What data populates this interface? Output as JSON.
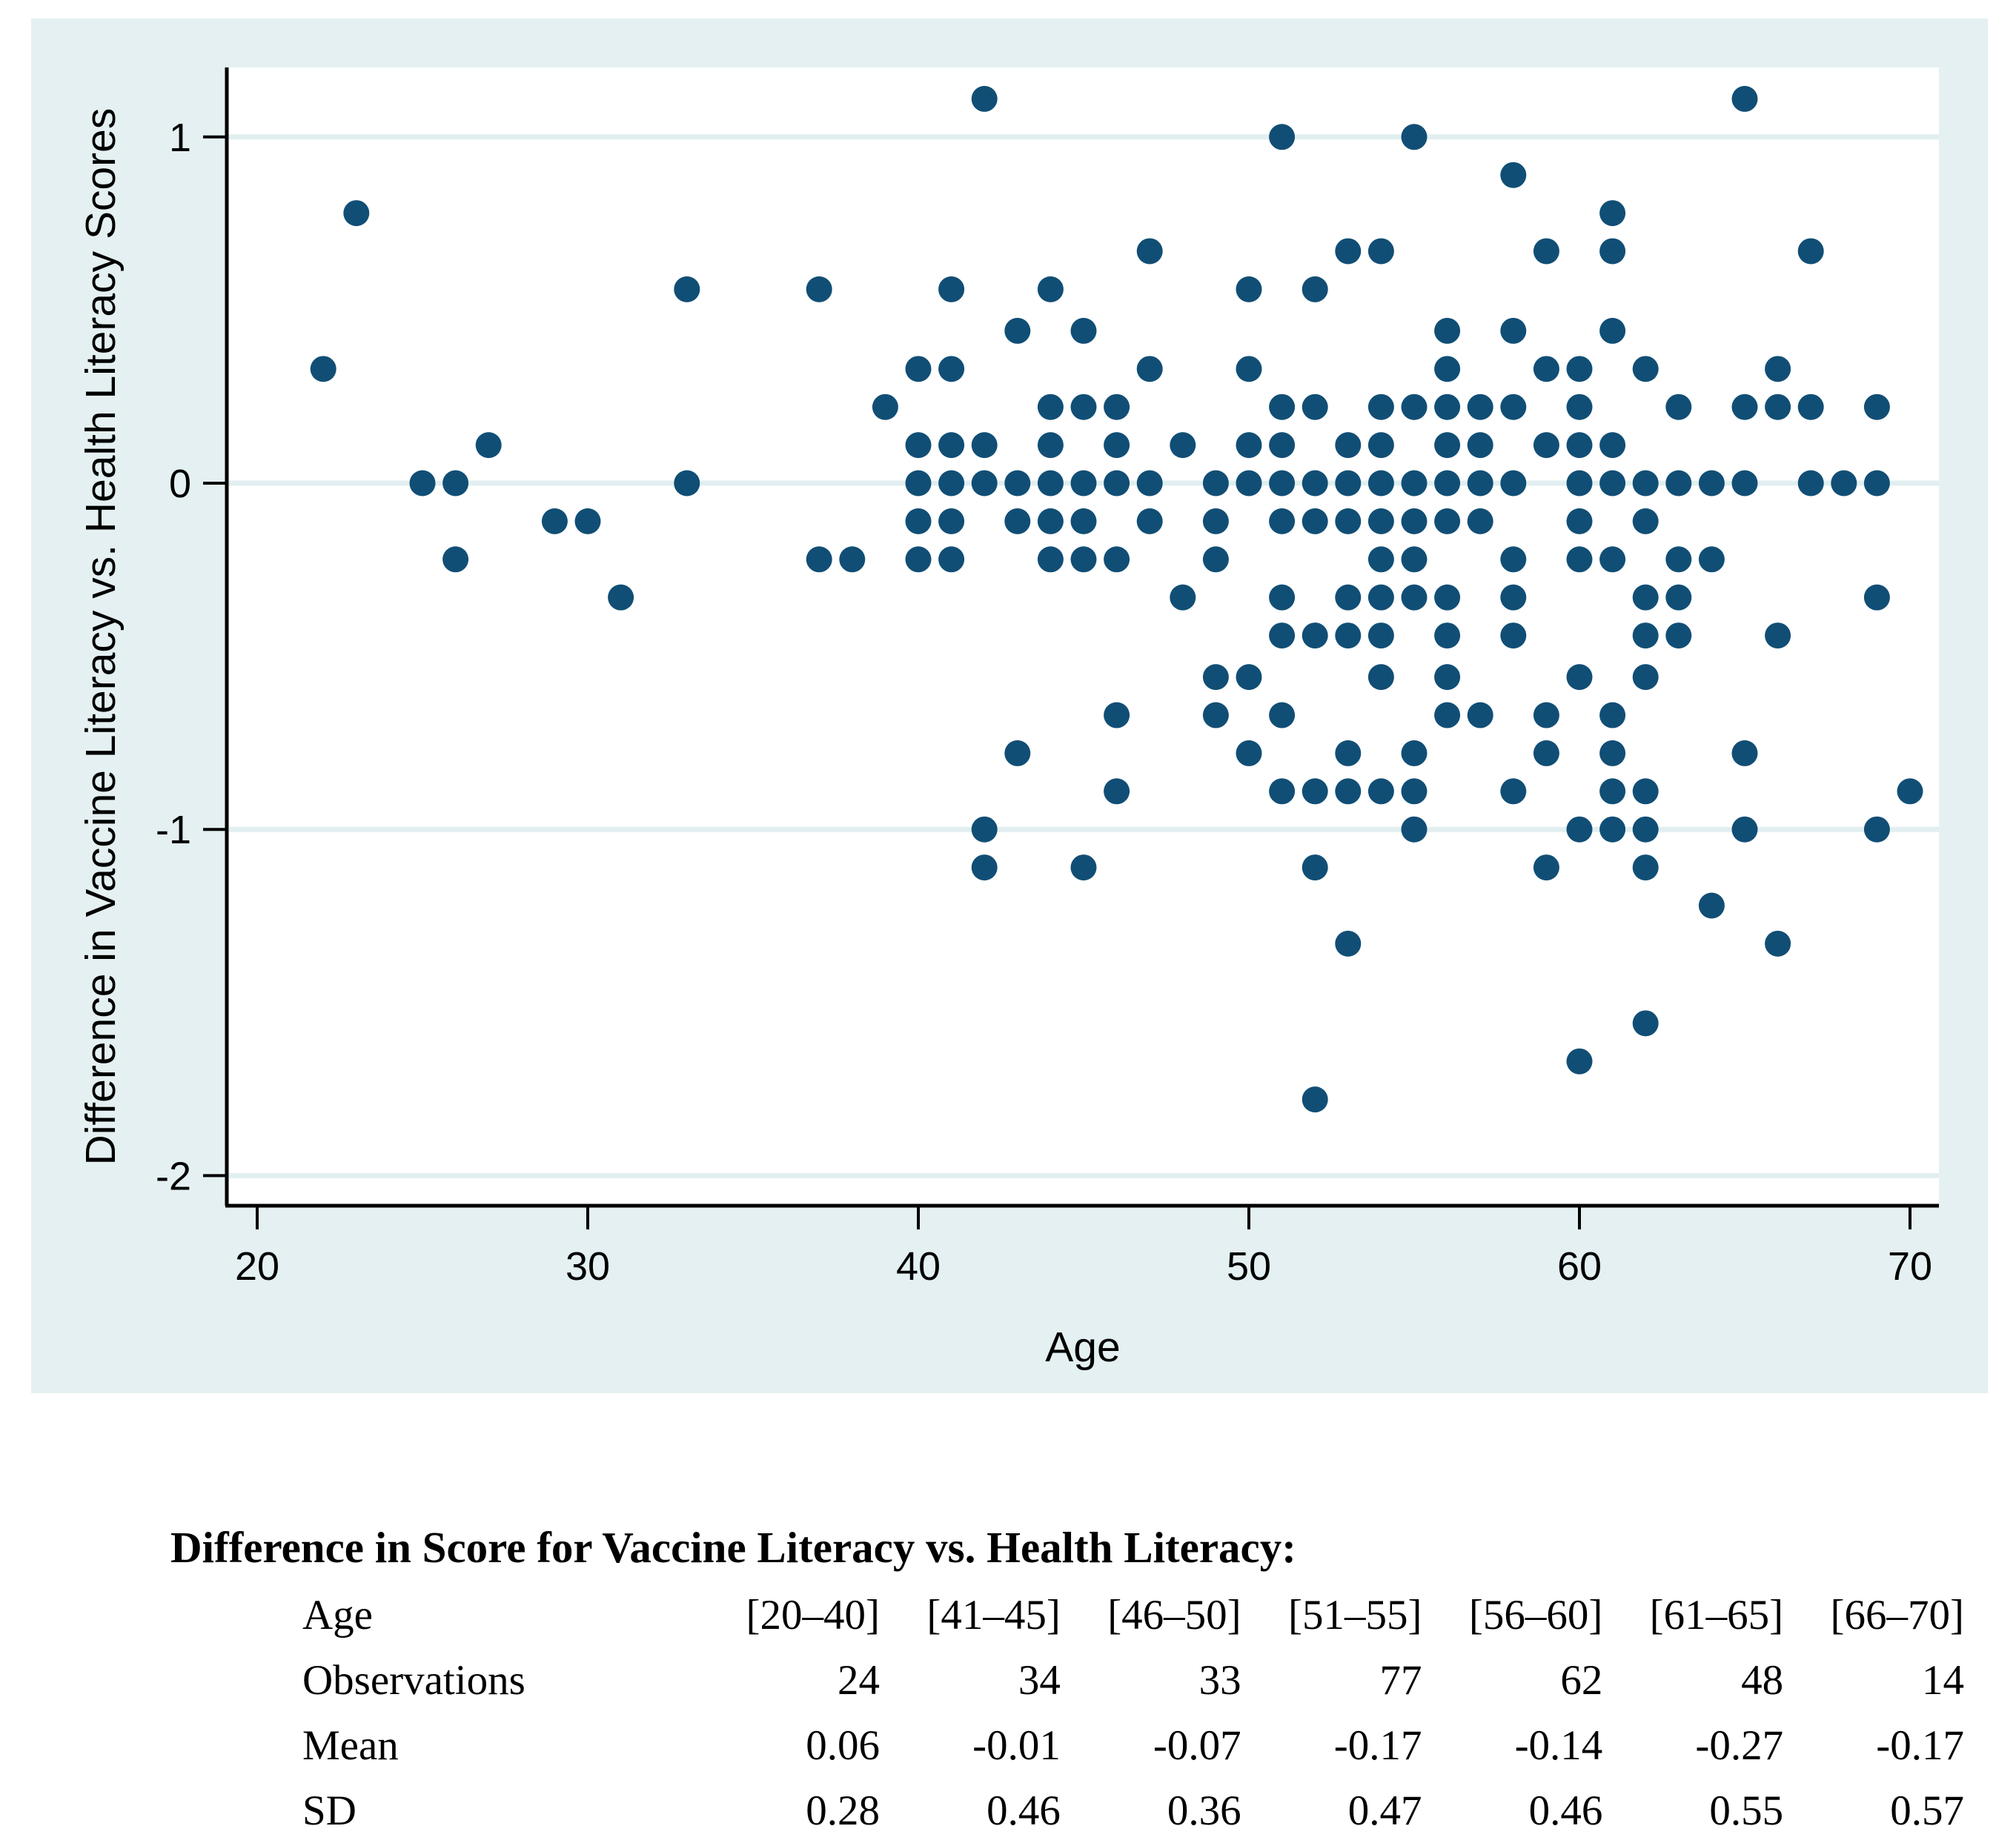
{
  "chart_data": {
    "type": "scatter",
    "title": "",
    "xlabel": "Age",
    "ylabel": "Difference in Vaccine Literacy vs. Health Literacy Scores",
    "x_ticks": [
      20,
      30,
      40,
      50,
      60,
      70
    ],
    "y_ticks": [
      1,
      0,
      -1,
      -2
    ],
    "xlim": [
      19.05,
      70.95
    ],
    "ylim": [
      -2.08,
      1.2
    ],
    "grid": "horizontal-only",
    "legend": "none",
    "marker_color": "#114E75",
    "panel_color": "#E4F0F1",
    "gridline_color": "#E2EFF0",
    "axis_color": "#000000",
    "points": [
      [
        22,
        0.33
      ],
      [
        23,
        0.78
      ],
      [
        25,
        0
      ],
      [
        26,
        0
      ],
      [
        26,
        -0.22
      ],
      [
        27,
        0.11
      ],
      [
        29,
        -0.11
      ],
      [
        30,
        -0.11
      ],
      [
        31,
        -0.33
      ],
      [
        33,
        0.56
      ],
      [
        33,
        0
      ],
      [
        37,
        0.56
      ],
      [
        37,
        -0.22
      ],
      [
        38,
        -0.22
      ],
      [
        39,
        0.22
      ],
      [
        40,
        0.33
      ],
      [
        40,
        0.11
      ],
      [
        40,
        0
      ],
      [
        40,
        -0.11
      ],
      [
        40,
        -0.22
      ],
      [
        41,
        0.56
      ],
      [
        41,
        0.33
      ],
      [
        41,
        0.11
      ],
      [
        41,
        0
      ],
      [
        41,
        -0.11
      ],
      [
        41,
        -0.22
      ],
      [
        42,
        1.11
      ],
      [
        42,
        0.11
      ],
      [
        42,
        0
      ],
      [
        42,
        -1.0
      ],
      [
        42,
        -1.11
      ],
      [
        43,
        0.44
      ],
      [
        43,
        0
      ],
      [
        43,
        -0.11
      ],
      [
        43,
        -0.78
      ],
      [
        44,
        0.56
      ],
      [
        44,
        0.22
      ],
      [
        44,
        0.11
      ],
      [
        44,
        0
      ],
      [
        44,
        -0.11
      ],
      [
        44,
        -0.22
      ],
      [
        45,
        0.44
      ],
      [
        45,
        0.22
      ],
      [
        45,
        0
      ],
      [
        45,
        -0.11
      ],
      [
        45,
        -0.22
      ],
      [
        45,
        -1.11
      ],
      [
        46,
        0.22
      ],
      [
        46,
        0.11
      ],
      [
        46,
        0
      ],
      [
        46,
        -0.22
      ],
      [
        46,
        -0.67
      ],
      [
        46,
        -0.89
      ],
      [
        47,
        0.67
      ],
      [
        47,
        0.33
      ],
      [
        47,
        0
      ],
      [
        47,
        -0.11
      ],
      [
        48,
        0.11
      ],
      [
        48,
        -0.33
      ],
      [
        49,
        0
      ],
      [
        49,
        -0.11
      ],
      [
        49,
        -0.22
      ],
      [
        49,
        -0.56
      ],
      [
        49,
        -0.67
      ],
      [
        50,
        0.56
      ],
      [
        50,
        0.33
      ],
      [
        50,
        0.11
      ],
      [
        50,
        0
      ],
      [
        50,
        -0.56
      ],
      [
        50,
        -0.78
      ],
      [
        51,
        1.0
      ],
      [
        51,
        0.22
      ],
      [
        51,
        0.11
      ],
      [
        51,
        0
      ],
      [
        51,
        -0.11
      ],
      [
        51,
        -0.33
      ],
      [
        51,
        -0.44
      ],
      [
        51,
        -0.67
      ],
      [
        51,
        -0.89
      ],
      [
        52,
        0.56
      ],
      [
        52,
        0.22
      ],
      [
        52,
        0
      ],
      [
        52,
        -0.11
      ],
      [
        52,
        -0.44
      ],
      [
        52,
        -0.89
      ],
      [
        52,
        -1.11
      ],
      [
        52,
        -1.78
      ],
      [
        53,
        0.67
      ],
      [
        53,
        0.11
      ],
      [
        53,
        0
      ],
      [
        53,
        -0.11
      ],
      [
        53,
        -0.33
      ],
      [
        53,
        -0.44
      ],
      [
        53,
        -0.78
      ],
      [
        53,
        -0.89
      ],
      [
        53,
        -1.33
      ],
      [
        54,
        0.67
      ],
      [
        54,
        0.22
      ],
      [
        54,
        0.11
      ],
      [
        54,
        0
      ],
      [
        54,
        -0.11
      ],
      [
        54,
        -0.22
      ],
      [
        54,
        -0.33
      ],
      [
        54,
        -0.44
      ],
      [
        54,
        -0.56
      ],
      [
        54,
        -0.89
      ],
      [
        55,
        1.0
      ],
      [
        55,
        0.22
      ],
      [
        55,
        0
      ],
      [
        55,
        -0.11
      ],
      [
        55,
        -0.22
      ],
      [
        55,
        -0.33
      ],
      [
        55,
        -0.78
      ],
      [
        55,
        -0.89
      ],
      [
        55,
        -1.0
      ],
      [
        56,
        0.44
      ],
      [
        56,
        0.33
      ],
      [
        56,
        0.22
      ],
      [
        56,
        0.11
      ],
      [
        56,
        0
      ],
      [
        56,
        -0.11
      ],
      [
        56,
        -0.33
      ],
      [
        56,
        -0.44
      ],
      [
        56,
        -0.56
      ],
      [
        56,
        -0.67
      ],
      [
        57,
        0.22
      ],
      [
        57,
        0.11
      ],
      [
        57,
        0
      ],
      [
        57,
        -0.11
      ],
      [
        57,
        -0.67
      ],
      [
        58,
        0.89
      ],
      [
        58,
        0.44
      ],
      [
        58,
        0.22
      ],
      [
        58,
        0
      ],
      [
        58,
        -0.22
      ],
      [
        58,
        -0.33
      ],
      [
        58,
        -0.44
      ],
      [
        58,
        -0.89
      ],
      [
        59,
        0.67
      ],
      [
        59,
        0.33
      ],
      [
        59,
        0.11
      ],
      [
        59,
        -0.67
      ],
      [
        59,
        -0.78
      ],
      [
        59,
        -1.11
      ],
      [
        60,
        0.33
      ],
      [
        60,
        0.22
      ],
      [
        60,
        0.11
      ],
      [
        60,
        0
      ],
      [
        60,
        -0.11
      ],
      [
        60,
        -0.22
      ],
      [
        60,
        -0.56
      ],
      [
        60,
        -1.0
      ],
      [
        60,
        -1.67
      ],
      [
        61,
        0.78
      ],
      [
        61,
        0.67
      ],
      [
        61,
        0.44
      ],
      [
        61,
        0.11
      ],
      [
        61,
        0
      ],
      [
        61,
        -0.22
      ],
      [
        61,
        -0.67
      ],
      [
        61,
        -0.78
      ],
      [
        61,
        -0.89
      ],
      [
        61,
        -1.0
      ],
      [
        62,
        0.33
      ],
      [
        62,
        0
      ],
      [
        62,
        -0.11
      ],
      [
        62,
        -0.33
      ],
      [
        62,
        -0.44
      ],
      [
        62,
        -0.56
      ],
      [
        62,
        -0.89
      ],
      [
        62,
        -1.0
      ],
      [
        62,
        -1.11
      ],
      [
        62,
        -1.56
      ],
      [
        63,
        0.22
      ],
      [
        63,
        0
      ],
      [
        63,
        -0.22
      ],
      [
        63,
        -0.33
      ],
      [
        63,
        -0.44
      ],
      [
        64,
        0
      ],
      [
        64,
        -0.22
      ],
      [
        64,
        -1.22
      ],
      [
        65,
        1.11
      ],
      [
        65,
        0.22
      ],
      [
        65,
        0
      ],
      [
        65,
        -0.78
      ],
      [
        65,
        -1.0
      ],
      [
        66,
        0.33
      ],
      [
        66,
        0.22
      ],
      [
        66,
        -0.44
      ],
      [
        66,
        -1.33
      ],
      [
        67,
        0.67
      ],
      [
        67,
        0.22
      ],
      [
        67,
        0
      ],
      [
        68,
        0
      ],
      [
        69,
        0.22
      ],
      [
        69,
        0
      ],
      [
        69,
        -0.33
      ],
      [
        69,
        -1.0
      ],
      [
        70,
        -0.89
      ]
    ]
  },
  "table": {
    "title": "Difference in Score for Vaccine Literacy vs. Health Literacy:",
    "rows": [
      {
        "label": "Age",
        "values": [
          "[20–40]",
          "[41–45]",
          "[46–50]",
          "[51–55]",
          "[56–60]",
          "[61–65]",
          "[66–70]"
        ]
      },
      {
        "label": "Observations",
        "values": [
          "24",
          "34",
          "33",
          "77",
          "62",
          "48",
          "14"
        ]
      },
      {
        "label": "Mean",
        "values": [
          "0.06",
          "-0.01",
          "-0.07",
          "-0.17",
          "-0.14",
          "-0.27",
          "-0.17"
        ]
      },
      {
        "label": "SD",
        "values": [
          "0.28",
          "0.46",
          "0.36",
          "0.47",
          "0.46",
          "0.55",
          "0.57"
        ]
      }
    ]
  }
}
